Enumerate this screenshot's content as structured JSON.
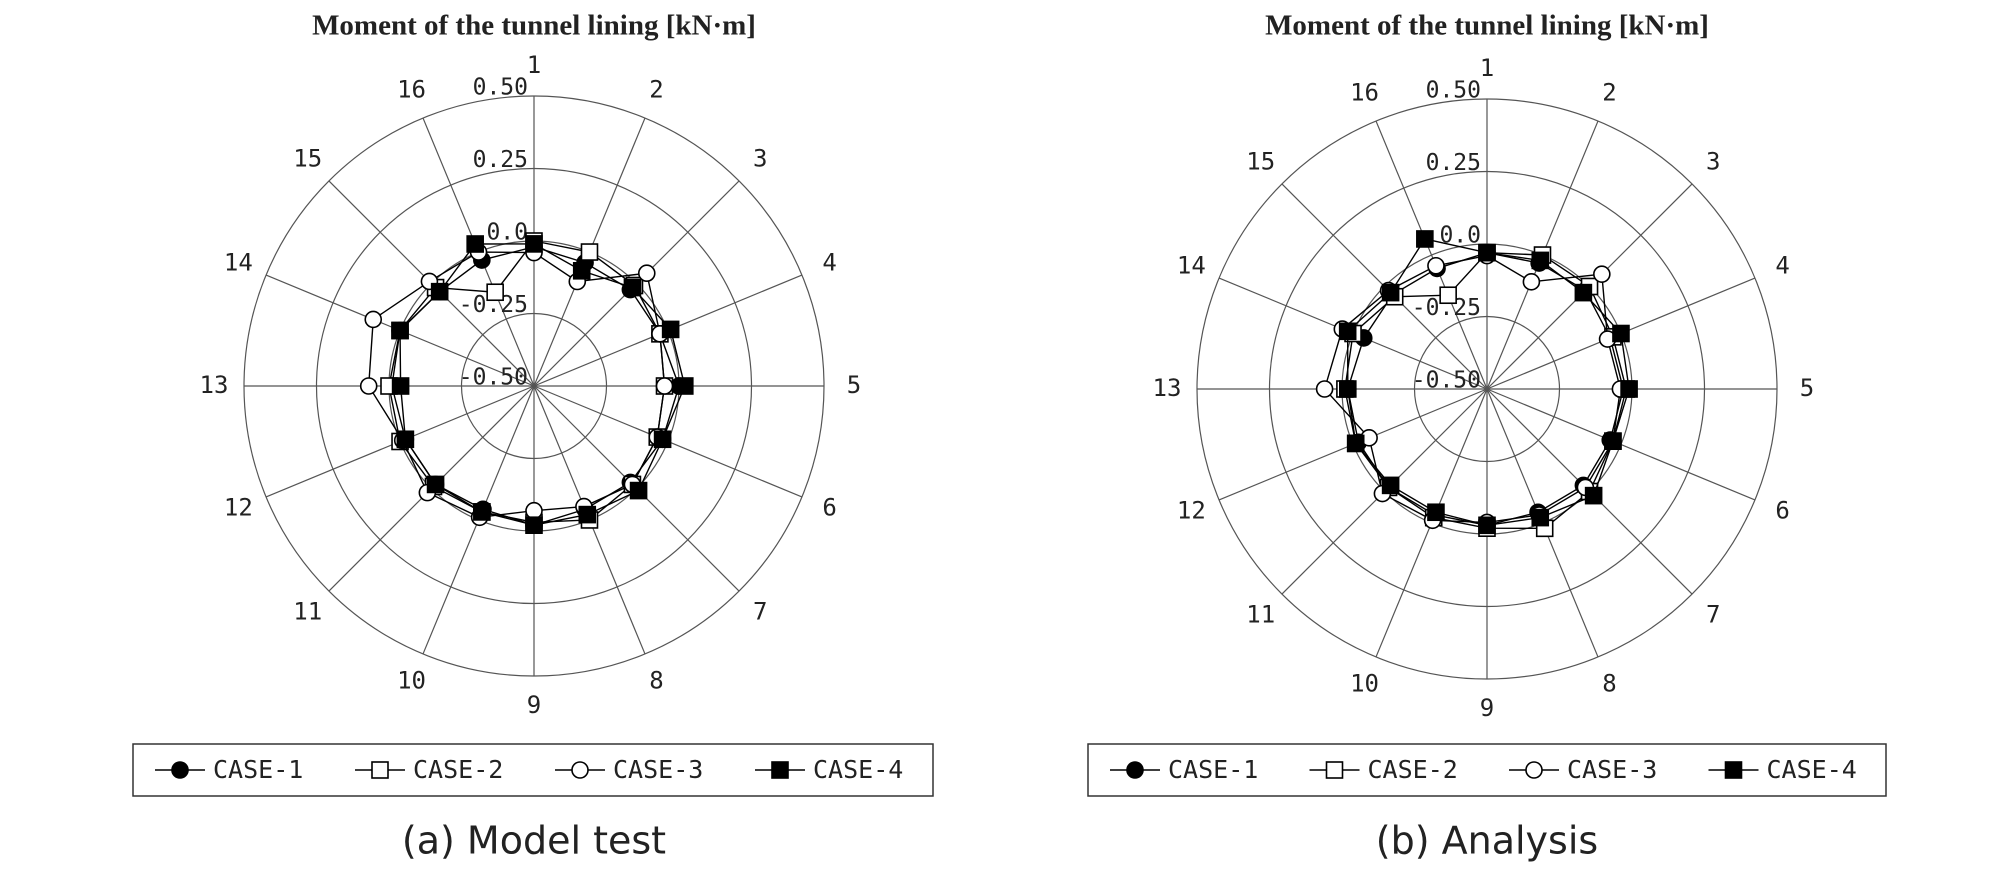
{
  "chart_data": [
    {
      "type": "radar",
      "title": "Moment of the tunnel lining [kN·m]",
      "caption": "(a) Model test",
      "categories": [
        "1",
        "2",
        "3",
        "4",
        "5",
        "6",
        "7",
        "8",
        "9",
        "10",
        "11",
        "12",
        "13",
        "14",
        "15",
        "16"
      ],
      "rlim": [
        -0.5,
        0.5
      ],
      "rticks": [
        {
          "value": -0.5,
          "label": "-0.50"
        },
        -0.25,
        {
          "value": 0,
          "label": "0.0"
        },
        0.25,
        {
          "value": 0.5,
          "label": "0.50"
        }
      ],
      "series": [
        {
          "name": "CASE-1",
          "color": "#000000",
          "marker": "filled-circle",
          "values": [
            -0.02,
            -0.04,
            -0.03,
            -0.03,
            0.0,
            -0.02,
            -0.03,
            -0.04,
            -0.02,
            -0.04,
            -0.02,
            -0.02,
            -0.01,
            0.0,
            -0.04,
            -0.03
          ]
        },
        {
          "name": "CASE-2",
          "color": "#000000",
          "marker": "open-square",
          "values": [
            0.0,
            0.0,
            -0.01,
            -0.03,
            -0.05,
            -0.04,
            -0.02,
            0.0,
            -0.03,
            -0.03,
            -0.01,
            0.0,
            0.0,
            0.0,
            -0.02,
            -0.15
          ]
        },
        {
          "name": "CASE-3",
          "color": "#000000",
          "marker": "open-circle",
          "values": [
            -0.04,
            -0.11,
            0.05,
            -0.03,
            -0.05,
            -0.04,
            -0.02,
            -0.05,
            -0.07,
            -0.01,
            0.02,
            -0.01,
            0.07,
            0.1,
            0.01,
            0.0
          ]
        },
        {
          "name": "CASE-4",
          "color": "#000000",
          "marker": "filled-square",
          "values": [
            -0.01,
            -0.07,
            -0.02,
            0.01,
            0.02,
            -0.02,
            0.01,
            -0.02,
            -0.02,
            -0.03,
            -0.02,
            -0.02,
            -0.04,
            0.0,
            -0.04,
            0.03
          ]
        }
      ]
    },
    {
      "type": "radar",
      "title": "Moment of the tunnel lining [kN·m]",
      "caption": "(b) Analysis",
      "categories": [
        "1",
        "2",
        "3",
        "4",
        "5",
        "6",
        "7",
        "8",
        "9",
        "10",
        "11",
        "12",
        "13",
        "14",
        "15",
        "16"
      ],
      "rlim": [
        -0.5,
        0.5
      ],
      "rticks": [
        {
          "value": -0.5,
          "label": "-0.50"
        },
        -0.25,
        {
          "value": 0,
          "label": "0.0"
        },
        0.25,
        {
          "value": 0.5,
          "label": "0.50"
        }
      ],
      "series": [
        {
          "name": "CASE-1",
          "color": "#000000",
          "marker": "filled-circle",
          "values": [
            -0.03,
            -0.03,
            -0.02,
            -0.04,
            -0.03,
            -0.04,
            -0.03,
            -0.04,
            -0.03,
            -0.03,
            -0.02,
            -0.02,
            -0.02,
            -0.04,
            -0.04,
            -0.05
          ]
        },
        {
          "name": "CASE-2",
          "color": "#000000",
          "marker": "open-square",
          "values": [
            -0.03,
            0.0,
            0.0,
            -0.03,
            -0.02,
            -0.03,
            0.0,
            0.02,
            -0.02,
            -0.02,
            -0.02,
            -0.01,
            -0.01,
            0.0,
            -0.05,
            -0.15
          ]
        },
        {
          "name": "CASE-3",
          "color": "#000000",
          "marker": "open-circle",
          "values": [
            -0.04,
            -0.1,
            0.06,
            -0.05,
            -0.04,
            -0.03,
            -0.02,
            -0.03,
            -0.04,
            -0.01,
            0.01,
            -0.06,
            0.06,
            0.04,
            -0.02,
            -0.04
          ]
        },
        {
          "name": "CASE-4",
          "color": "#000000",
          "marker": "filled-square",
          "values": [
            -0.03,
            -0.02,
            -0.03,
            0.0,
            -0.01,
            -0.03,
            0.02,
            -0.02,
            -0.03,
            -0.04,
            -0.03,
            -0.01,
            -0.02,
            0.02,
            -0.03,
            0.06
          ]
        }
      ]
    }
  ]
}
